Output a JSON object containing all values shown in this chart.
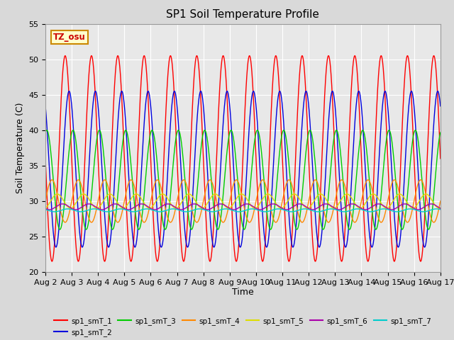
{
  "title": "SP1 Soil Temperature Profile",
  "xlabel": "Time",
  "ylabel": "Soil Temperature (C)",
  "ylim": [
    20,
    55
  ],
  "xlim_days": [
    0,
    15
  ],
  "annotation_text": "TZ_osu",
  "annotation_bg": "#ffffcc",
  "annotation_border": "#cc8800",
  "series": [
    {
      "name": "sp1_smT_1",
      "color": "#ff0000",
      "amp": 14.5,
      "mean": 36.0,
      "phase_days": 0.0
    },
    {
      "name": "sp1_smT_2",
      "color": "#0000dd",
      "amp": 11.0,
      "mean": 34.5,
      "phase_days": 0.15
    },
    {
      "name": "sp1_smT_3",
      "color": "#00cc00",
      "amp": 7.0,
      "mean": 33.0,
      "phase_days": 0.3
    },
    {
      "name": "sp1_smT_4",
      "color": "#ff8800",
      "amp": 3.0,
      "mean": 30.0,
      "phase_days": 0.5
    },
    {
      "name": "sp1_smT_5",
      "color": "#dddd00",
      "amp": 1.0,
      "mean": 30.0,
      "phase_days": 0.7
    },
    {
      "name": "sp1_smT_6",
      "color": "#aa00aa",
      "amp": 0.4,
      "mean": 29.2,
      "phase_days": 0.9
    },
    {
      "name": "sp1_smT_7",
      "color": "#00cccc",
      "amp": 0.2,
      "mean": 28.7,
      "phase_days": 1.1
    }
  ],
  "tick_labels": [
    "Aug 2",
    "Aug 3",
    "Aug 4",
    "Aug 5",
    "Aug 6",
    "Aug 7",
    "Aug 8",
    "Aug 9",
    "Aug 10",
    "Aug 11",
    "Aug 12",
    "Aug 13",
    "Aug 14",
    "Aug 15",
    "Aug 16",
    "Aug 17"
  ],
  "bg_color": "#d9d9d9",
  "plot_bg": "#e8e8e8",
  "grid_color": "#ffffff"
}
